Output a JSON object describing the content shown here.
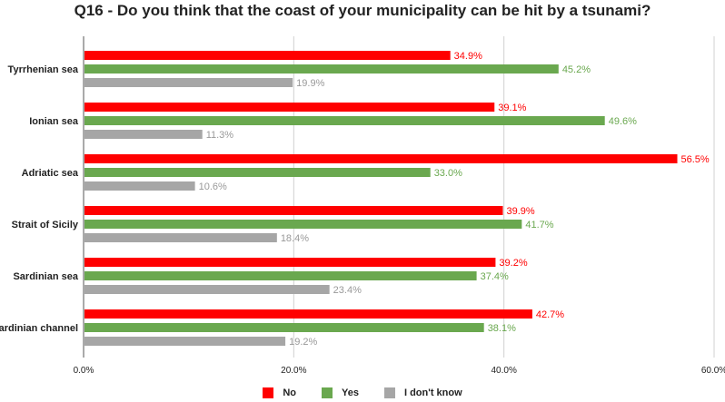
{
  "chart_data": {
    "type": "bar",
    "orientation": "horizontal",
    "title": "Q16 - Do you think that the coast of your municipality can be hit by a tsunami?",
    "categories": [
      "Tyrrhenian sea",
      "Ionian sea",
      "Adriatic sea",
      "Strait of Sicily",
      "Sardinian sea",
      "Sardinian channel"
    ],
    "series": [
      {
        "name": "No",
        "color": "#ff0000",
        "label_color": "#ff0000",
        "values": [
          34.9,
          39.1,
          56.5,
          39.9,
          39.2,
          42.7
        ]
      },
      {
        "name": "Yes",
        "color": "#6aa84f",
        "label_color": "#6aa84f",
        "values": [
          45.2,
          49.6,
          33.0,
          41.7,
          37.4,
          38.1
        ]
      },
      {
        "name": "I don't know",
        "color": "#a6a6a6",
        "label_color": "#999999",
        "values": [
          19.9,
          11.3,
          10.6,
          18.4,
          23.4,
          19.2
        ]
      }
    ],
    "xlim": [
      0,
      60
    ],
    "xticks": [
      0,
      20,
      40,
      60
    ],
    "xtick_labels": [
      "0.0%",
      "20.0%",
      "40.0%",
      "60.0%"
    ],
    "value_format": "percent_1dp",
    "grid": true,
    "legend_position": "bottom"
  }
}
